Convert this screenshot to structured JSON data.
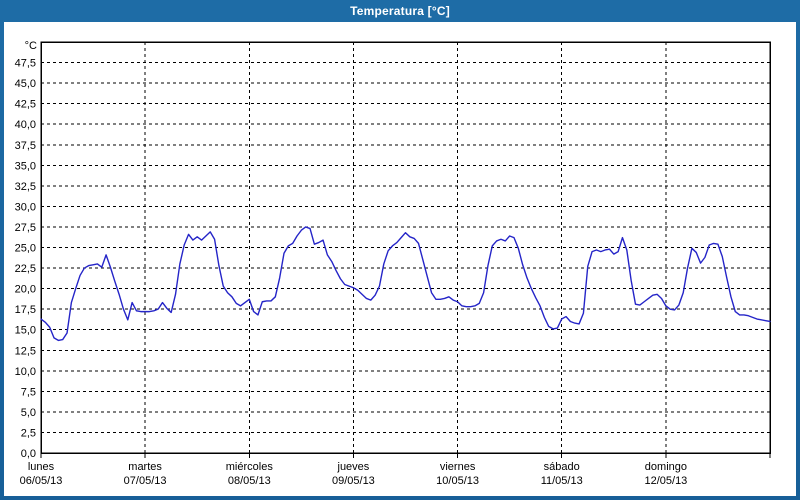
{
  "window": {
    "title": "Temperatura [°C]"
  },
  "colors": {
    "titlebar": "#1a649d",
    "window_border": "#1a649d",
    "title_text": "#ffffff",
    "panel_background": "#ffffff",
    "plot_border": "#000000",
    "grid": "#000000",
    "axis_text": "#000000",
    "line": "#2525c8"
  },
  "y_axis": {
    "unit_label": "°C",
    "tick_labels": [
      "47,5",
      "45,0",
      "42,5",
      "40,0",
      "37,5",
      "35,0",
      "32,5",
      "30,0",
      "27,5",
      "25,0",
      "22,5",
      "20,0",
      "17,5",
      "15,0",
      "12,5",
      "10,0",
      "7,5",
      "5,0",
      "2,5",
      "0,0"
    ],
    "min": 0,
    "max": 50,
    "tick_step": 2.5
  },
  "x_axis": {
    "days": [
      {
        "name": "lunes",
        "date": "06/05/13"
      },
      {
        "name": "martes",
        "date": "07/05/13"
      },
      {
        "name": "miércoles",
        "date": "08/05/13"
      },
      {
        "name": "jueves",
        "date": "09/05/13"
      },
      {
        "name": "viernes",
        "date": "10/05/13"
      },
      {
        "name": "sábado",
        "date": "11/05/13"
      },
      {
        "name": "domingo",
        "date": "12/05/13"
      }
    ]
  },
  "chart_data": {
    "type": "line",
    "title": "Temperatura [°C]",
    "ylabel": "°C",
    "ylim": [
      0,
      50
    ],
    "grid": "dashed",
    "legend_position": "none",
    "x_start": "lunes 06/05/13 00:00",
    "x_end": "domingo 12/05/13 24:00",
    "sampling": "hourly",
    "hours_total": 168,
    "series": [
      {
        "name": "Temperatura",
        "unit": "°C",
        "values": [
          16.3,
          15.9,
          15.3,
          14.0,
          13.7,
          13.8,
          14.6,
          18.3,
          20.0,
          21.6,
          22.5,
          22.8,
          22.9,
          23.0,
          22.6,
          24.1,
          22.6,
          20.9,
          19.3,
          17.5,
          16.2,
          18.3,
          17.3,
          17.2,
          17.2,
          17.2,
          17.3,
          17.5,
          18.3,
          17.6,
          17.1,
          19.3,
          23.0,
          25.3,
          26.6,
          25.9,
          26.3,
          25.9,
          26.4,
          26.9,
          26.0,
          22.8,
          20.3,
          19.5,
          19.0,
          18.2,
          17.9,
          18.3,
          18.7,
          17.2,
          16.8,
          18.4,
          18.5,
          18.5,
          19.0,
          21.3,
          24.3,
          25.2,
          25.5,
          26.4,
          27.1,
          27.5,
          27.3,
          25.4,
          25.6,
          25.9,
          24.1,
          23.3,
          22.2,
          21.2,
          20.5,
          20.3,
          20.1,
          19.8,
          19.3,
          18.8,
          18.6,
          19.2,
          20.3,
          23.0,
          24.6,
          25.2,
          25.6,
          26.2,
          26.8,
          26.3,
          26.1,
          25.5,
          23.5,
          21.5,
          19.5,
          18.7,
          18.7,
          18.8,
          19.0,
          18.6,
          18.4,
          17.9,
          17.8,
          17.8,
          17.9,
          18.2,
          19.5,
          22.8,
          25.2,
          25.8,
          26.0,
          25.8,
          26.4,
          26.2,
          24.9,
          22.9,
          21.3,
          20.0,
          18.9,
          17.9,
          16.5,
          15.4,
          15.1,
          15.2,
          16.3,
          16.6,
          16.0,
          15.8,
          15.7,
          17.0,
          22.7,
          24.5,
          24.7,
          24.5,
          24.7,
          24.8,
          24.2,
          24.5,
          26.2,
          24.7,
          21.0,
          18.1,
          18.0,
          18.4,
          18.8,
          19.2,
          19.3,
          18.8,
          17.9,
          17.5,
          17.4,
          18.0,
          19.5,
          22.5,
          24.9,
          24.4,
          23.1,
          23.8,
          25.3,
          25.5,
          25.4,
          23.9,
          21.4,
          19.0,
          17.2,
          16.8,
          16.8,
          16.7,
          16.5,
          16.3,
          16.2,
          16.1,
          16.0
        ]
      }
    ]
  }
}
